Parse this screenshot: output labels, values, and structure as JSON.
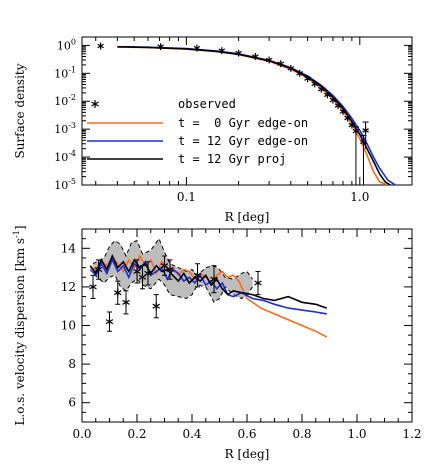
{
  "chart_data": [
    {
      "type": "line",
      "id": "top",
      "xlabel": "R [deg]",
      "ylabel": "Surface density",
      "xscale": "log",
      "yscale": "log",
      "xlim": [
        0.025,
        2.0
      ],
      "ylim": [
        1e-05,
        2.0
      ],
      "x_ticks": [
        {
          "value": 0.1,
          "label": "0.1"
        },
        {
          "value": 1.0,
          "label": "1.0"
        }
      ],
      "y_ticks": [
        {
          "value": 1,
          "base": "10",
          "exp": "0"
        },
        {
          "value": 0.1,
          "base": "10",
          "exp": "-1"
        },
        {
          "value": 0.01,
          "base": "10",
          "exp": "-2"
        },
        {
          "value": 0.001,
          "base": "10",
          "exp": "-3"
        },
        {
          "value": 0.0001,
          "base": "10",
          "exp": "-4"
        },
        {
          "value": 1e-05,
          "base": "10",
          "exp": "-5"
        }
      ],
      "legend": {
        "placement": "bottom-center",
        "entries": [
          {
            "label": "observed",
            "marker": "asterisk",
            "color": "#000000"
          },
          {
            "label": "t =  0 Gyr edge-on",
            "color": "#ff6a1a"
          },
          {
            "label": "t = 12 Gyr edge-on",
            "color": "#1a2be0"
          },
          {
            "label": "t = 12 Gyr proj",
            "color": "#000000"
          }
        ]
      },
      "observed": {
        "x": [
          0.032,
          0.071,
          0.115,
          0.16,
          0.2,
          0.25,
          0.3,
          0.35,
          0.4,
          0.45,
          0.5,
          0.55,
          0.6,
          0.65,
          0.7,
          0.75,
          0.8,
          0.85,
          0.9,
          0.95,
          1.05,
          1.08
        ],
        "y": [
          0.95,
          0.9,
          0.8,
          0.65,
          0.53,
          0.4,
          0.3,
          0.22,
          0.15,
          0.1,
          0.065,
          0.042,
          0.027,
          0.017,
          0.011,
          0.007,
          0.0043,
          0.0025,
          0.0014,
          0.00085,
          0.00035,
          0.0009
        ],
        "err_lo": [
          null,
          null,
          null,
          null,
          null,
          null,
          null,
          null,
          null,
          null,
          null,
          null,
          null,
          null,
          null,
          null,
          null,
          null,
          null,
          1e-05,
          1e-05,
          0.0002
        ],
        "err_hi": [
          null,
          null,
          null,
          null,
          null,
          null,
          null,
          null,
          null,
          null,
          null,
          null,
          null,
          null,
          null,
          null,
          null,
          null,
          null,
          0.0012,
          0.0006,
          0.0018
        ]
      },
      "series": [
        {
          "name": "t =  0 Gyr edge-on",
          "color": "#ff6a1a",
          "x": [
            0.04,
            0.06,
            0.1,
            0.15,
            0.2,
            0.3,
            0.4,
            0.5,
            0.6,
            0.7,
            0.8,
            0.9,
            1.0,
            1.1,
            1.2,
            1.3,
            1.45
          ],
          "y": [
            0.88,
            0.84,
            0.74,
            0.6,
            0.47,
            0.27,
            0.14,
            0.068,
            0.03,
            0.012,
            0.0045,
            0.0015,
            0.00045,
            0.00012,
            3e-05,
            1.3e-05,
            1e-05
          ]
        },
        {
          "name": "t = 12 Gyr edge-on",
          "color": "#1a2be0",
          "x": [
            0.04,
            0.06,
            0.1,
            0.15,
            0.2,
            0.3,
            0.4,
            0.5,
            0.6,
            0.7,
            0.8,
            0.9,
            1.0,
            1.1,
            1.2,
            1.3,
            1.45,
            1.6
          ],
          "y": [
            0.9,
            0.86,
            0.77,
            0.63,
            0.5,
            0.29,
            0.16,
            0.08,
            0.037,
            0.016,
            0.0065,
            0.0024,
            0.0009,
            0.0003,
            0.0001,
            4e-05,
            1.5e-05,
            1e-05
          ]
        },
        {
          "name": "t = 12 Gyr proj",
          "color": "#000000",
          "x": [
            0.04,
            0.06,
            0.1,
            0.15,
            0.2,
            0.3,
            0.4,
            0.5,
            0.6,
            0.7,
            0.8,
            0.9,
            1.0,
            1.1,
            1.2,
            1.3,
            1.4,
            1.5
          ],
          "y": [
            0.89,
            0.85,
            0.75,
            0.61,
            0.48,
            0.28,
            0.15,
            0.074,
            0.034,
            0.014,
            0.0055,
            0.0019,
            0.00065,
            0.0002,
            7e-05,
            2.5e-05,
            1.3e-05,
            1e-05
          ]
        }
      ]
    },
    {
      "type": "line",
      "id": "bottom",
      "xlabel": "R [deg]",
      "ylabel": "L.o.s. velocity dispersion [km s",
      "ylabel_sup": "-1",
      "ylabel_end": "]",
      "xlim": [
        0.0,
        1.2
      ],
      "ylim": [
        5.0,
        15.0
      ],
      "x_ticks": [
        {
          "value": 0.0,
          "label": "0.0"
        },
        {
          "value": 0.2,
          "label": "0.2"
        },
        {
          "value": 0.4,
          "label": "0.4"
        },
        {
          "value": 0.6,
          "label": "0.6"
        },
        {
          "value": 0.8,
          "label": "0.8"
        },
        {
          "value": 1.0,
          "label": "1.0"
        },
        {
          "value": 1.2,
          "label": "1.2"
        }
      ],
      "y_ticks": [
        {
          "value": 6,
          "label": "6"
        },
        {
          "value": 8,
          "label": "8"
        },
        {
          "value": 10,
          "label": "10"
        },
        {
          "value": 12,
          "label": "12"
        },
        {
          "value": 14,
          "label": "14"
        }
      ],
      "band": {
        "color": "#bdbdbd",
        "x": [
          0.04,
          0.08,
          0.1,
          0.12,
          0.14,
          0.16,
          0.18,
          0.2,
          0.22,
          0.25,
          0.28,
          0.3,
          0.32,
          0.35,
          0.38,
          0.4,
          0.42,
          0.45,
          0.48,
          0.5,
          0.52,
          0.55,
          0.58,
          0.6,
          0.62
        ],
        "upper": [
          13.2,
          13.5,
          14.1,
          14.4,
          14.2,
          13.6,
          14.3,
          14.4,
          13.7,
          13.9,
          14.5,
          13.8,
          13.2,
          13.0,
          12.8,
          12.9,
          12.6,
          13.0,
          13.1,
          12.9,
          12.5,
          12.4,
          12.7,
          12.8,
          12.4
        ],
        "lower": [
          12.7,
          12.2,
          12.5,
          12.6,
          12.0,
          11.8,
          12.2,
          12.4,
          12.1,
          11.9,
          12.4,
          12.1,
          11.6,
          11.5,
          11.4,
          11.6,
          12.1,
          12.0,
          11.2,
          11.4,
          12.0,
          11.6,
          11.4,
          11.6,
          12.0
        ]
      },
      "observed": {
        "x": [
          0.04,
          0.06,
          0.1,
          0.13,
          0.16,
          0.2,
          0.22,
          0.24,
          0.27,
          0.3,
          0.32,
          0.42,
          0.48,
          0.64
        ],
        "y": [
          12.0,
          12.9,
          10.2,
          11.7,
          11.2,
          12.8,
          12.5,
          12.7,
          11.0,
          13.1,
          12.9,
          12.6,
          12.4,
          12.2
        ],
        "err": [
          0.6,
          0.5,
          0.5,
          0.6,
          0.6,
          0.6,
          0.6,
          0.6,
          0.6,
          0.5,
          0.5,
          0.6,
          0.7,
          0.6
        ]
      },
      "series": [
        {
          "name": "t =  0 Gyr edge-on",
          "color": "#ff6a1a",
          "x": [
            0.03,
            0.05,
            0.07,
            0.09,
            0.11,
            0.13,
            0.15,
            0.17,
            0.19,
            0.21,
            0.23,
            0.25,
            0.27,
            0.29,
            0.31,
            0.33,
            0.35,
            0.37,
            0.39,
            0.41,
            0.43,
            0.45,
            0.47,
            0.49,
            0.51,
            0.53,
            0.55,
            0.57,
            0.6,
            0.65,
            0.7,
            0.75,
            0.8,
            0.85,
            0.89
          ],
          "y": [
            13.0,
            12.9,
            13.3,
            13.1,
            13.5,
            13.2,
            12.8,
            13.4,
            13.0,
            13.6,
            13.1,
            13.4,
            12.7,
            13.3,
            12.9,
            13.0,
            12.6,
            12.9,
            12.8,
            12.4,
            12.7,
            12.5,
            12.2,
            12.6,
            12.8,
            12.5,
            12.6,
            12.3,
            11.4,
            10.9,
            10.6,
            10.3,
            10.0,
            9.7,
            9.4
          ]
        },
        {
          "name": "t = 12 Gyr edge-on",
          "color": "#1a2be0",
          "x": [
            0.03,
            0.05,
            0.07,
            0.09,
            0.11,
            0.13,
            0.15,
            0.17,
            0.19,
            0.21,
            0.23,
            0.25,
            0.27,
            0.29,
            0.31,
            0.33,
            0.35,
            0.37,
            0.39,
            0.41,
            0.43,
            0.45,
            0.47,
            0.49,
            0.51,
            0.53,
            0.55,
            0.58,
            0.62,
            0.66,
            0.7,
            0.75,
            0.8,
            0.85,
            0.89
          ],
          "y": [
            12.9,
            12.6,
            13.2,
            12.7,
            13.4,
            12.8,
            13.1,
            12.5,
            13.2,
            12.9,
            13.3,
            12.6,
            12.8,
            13.0,
            12.4,
            12.9,
            12.7,
            12.3,
            12.5,
            12.2,
            12.6,
            12.1,
            12.3,
            11.9,
            12.2,
            11.6,
            11.5,
            11.7,
            11.4,
            11.3,
            11.1,
            10.9,
            10.8,
            10.7,
            10.6
          ]
        },
        {
          "name": "t = 12 Gyr proj",
          "color": "#000000",
          "x": [
            0.03,
            0.05,
            0.07,
            0.09,
            0.11,
            0.13,
            0.15,
            0.17,
            0.19,
            0.21,
            0.23,
            0.25,
            0.27,
            0.29,
            0.31,
            0.33,
            0.35,
            0.37,
            0.39,
            0.41,
            0.43,
            0.45,
            0.47,
            0.49,
            0.51,
            0.53,
            0.55,
            0.58,
            0.62,
            0.66,
            0.7,
            0.75,
            0.8,
            0.85,
            0.89
          ],
          "y": [
            13.1,
            12.7,
            13.4,
            12.9,
            13.6,
            13.0,
            13.3,
            12.8,
            13.4,
            13.0,
            13.2,
            12.7,
            13.1,
            12.8,
            12.9,
            12.6,
            12.3,
            12.7,
            12.2,
            12.5,
            12.3,
            12.6,
            12.1,
            12.4,
            11.9,
            11.6,
            11.8,
            11.7,
            11.6,
            11.4,
            11.3,
            11.5,
            11.2,
            11.1,
            10.9
          ]
        }
      ]
    }
  ]
}
